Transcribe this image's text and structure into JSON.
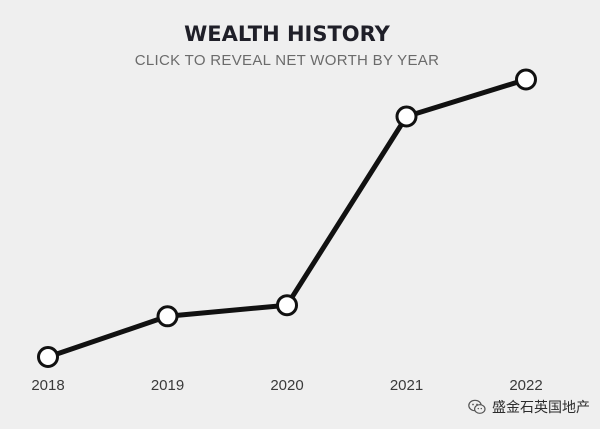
{
  "chart_data": {
    "type": "line",
    "title": "WEALTH HISTORY",
    "subtitle": "CLICK TO REVEAL NET WORTH BY YEAR",
    "categories": [
      "2018",
      "2019",
      "2020",
      "2021",
      "2022"
    ],
    "values": [
      10,
      21,
      24,
      75,
      85
    ],
    "ylim": [
      0,
      100
    ],
    "grid": false,
    "line_color": "#111111",
    "marker_fill": "#ffffff",
    "background": "#efefef"
  },
  "watermark": {
    "text": "盛金石英国地产",
    "icon": "wechat-icon"
  }
}
